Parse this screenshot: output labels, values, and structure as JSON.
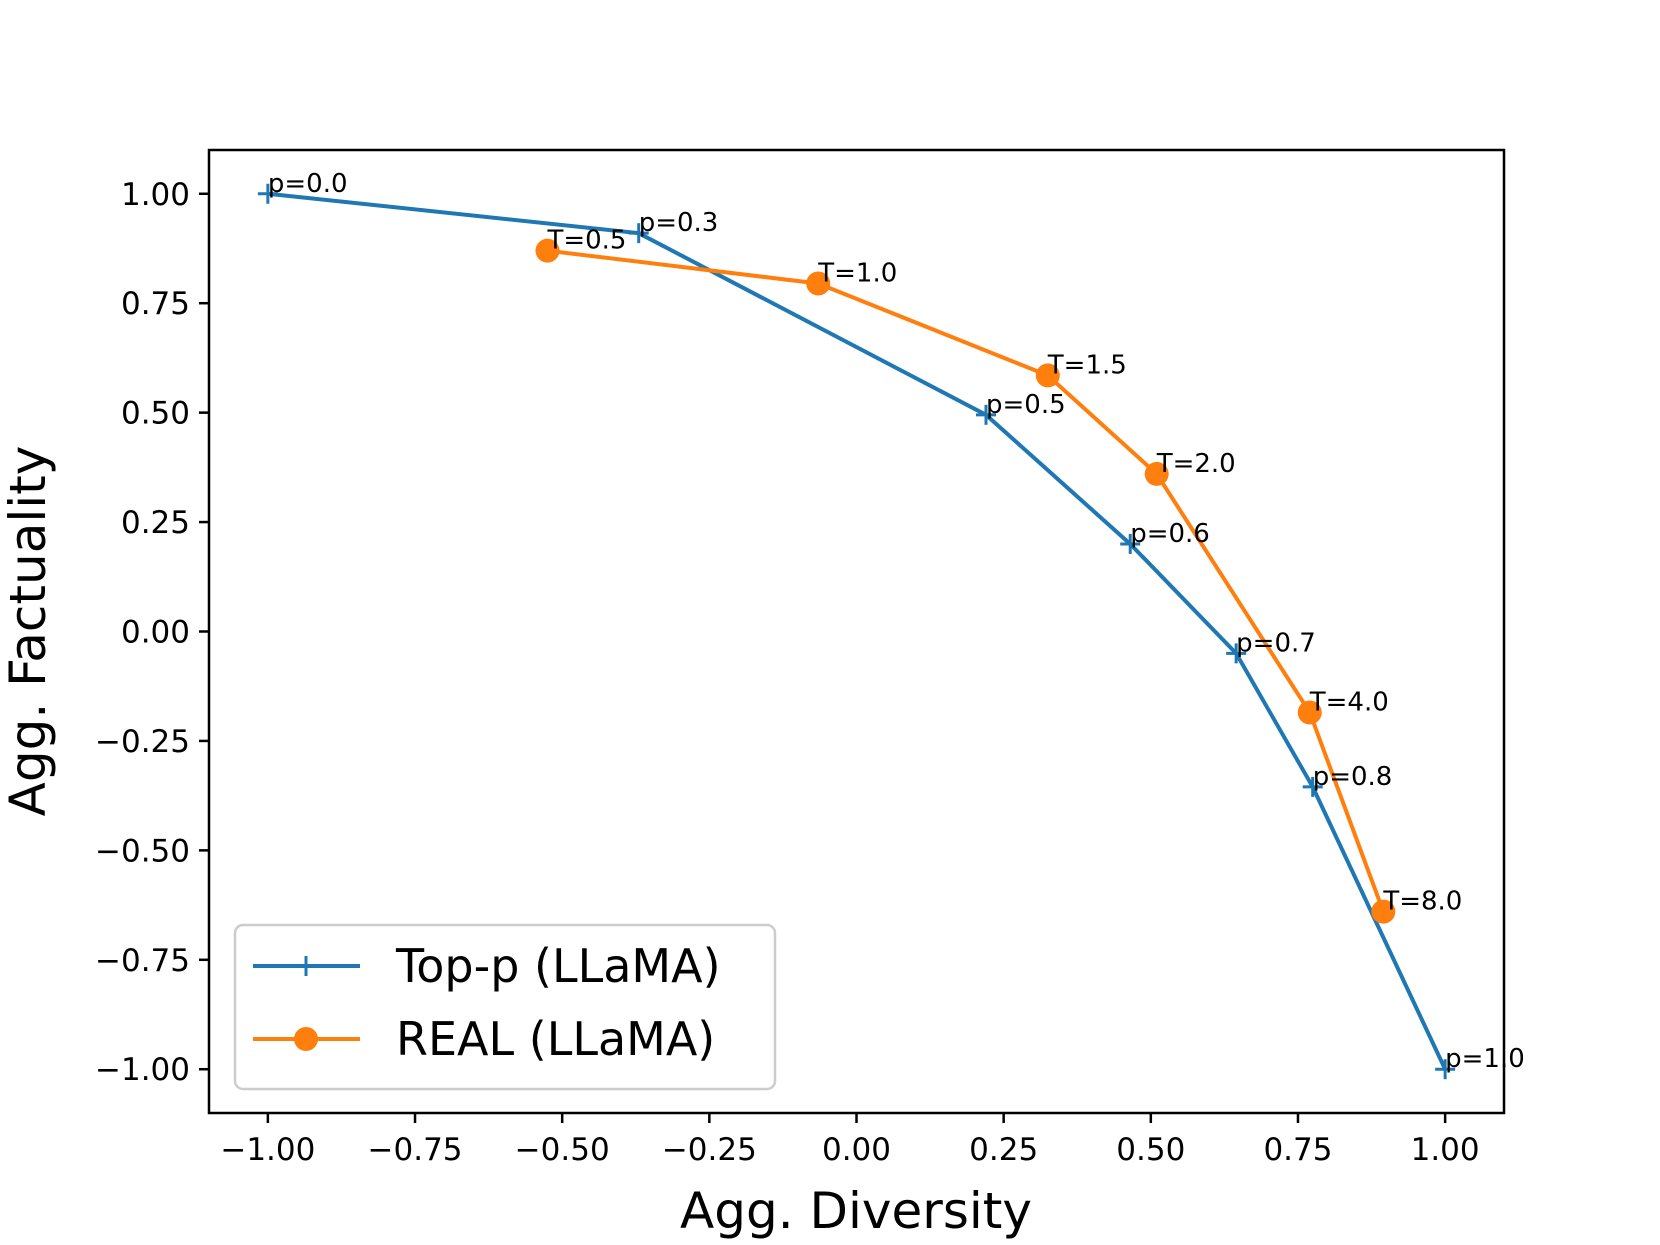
{
  "chart_data": {
    "type": "line",
    "title": "",
    "xlabel": "Agg. Diversity",
    "ylabel": "Agg. Factuality",
    "xlim": [
      -1.1,
      1.1
    ],
    "ylim": [
      -1.1,
      1.1
    ],
    "xticks": [
      -1.0,
      -0.75,
      -0.5,
      -0.25,
      0.0,
      0.25,
      0.5,
      0.75,
      1.0
    ],
    "xtick_labels": [
      "−1.00",
      "−0.75",
      "−0.50",
      "−0.25",
      "0.00",
      "0.25",
      "0.50",
      "0.75",
      "1.00"
    ],
    "yticks": [
      1.0,
      0.75,
      0.5,
      0.25,
      0.0,
      -0.25,
      -0.5,
      -0.75,
      -1.0
    ],
    "ytick_labels": [
      "1.00",
      "0.75",
      "0.50",
      "0.25",
      "0.00",
      "−0.25",
      "−0.50",
      "−0.75",
      "−1.00"
    ],
    "grid": false,
    "legend_position": "lower-left",
    "series": [
      {
        "name": "Top-p (LLaMA)",
        "color": "#1f77b4",
        "marker": "plus",
        "points": [
          {
            "x": -1.0,
            "y": 1.0,
            "label": "p=0.0"
          },
          {
            "x": -0.37,
            "y": 0.91,
            "label": "p=0.3"
          },
          {
            "x": 0.22,
            "y": 0.495,
            "label": "p=0.5"
          },
          {
            "x": 0.465,
            "y": 0.2,
            "label": "p=0.6"
          },
          {
            "x": 0.645,
            "y": -0.05,
            "label": "p=0.7"
          },
          {
            "x": 0.775,
            "y": -0.355,
            "label": "p=0.8"
          },
          {
            "x": 1.0,
            "y": -1.0,
            "label": "p=1.0"
          }
        ]
      },
      {
        "name": "REAL (LLaMA)",
        "color": "#ff7f0e",
        "marker": "circle",
        "points": [
          {
            "x": -0.525,
            "y": 0.87,
            "label": "T=0.5"
          },
          {
            "x": -0.065,
            "y": 0.795,
            "label": "T=1.0"
          },
          {
            "x": 0.325,
            "y": 0.585,
            "label": "T=1.5"
          },
          {
            "x": 0.51,
            "y": 0.36,
            "label": "T=2.0"
          },
          {
            "x": 0.77,
            "y": -0.185,
            "label": "T=4.0"
          },
          {
            "x": 0.895,
            "y": -0.64,
            "label": "T=8.0"
          }
        ]
      }
    ]
  }
}
